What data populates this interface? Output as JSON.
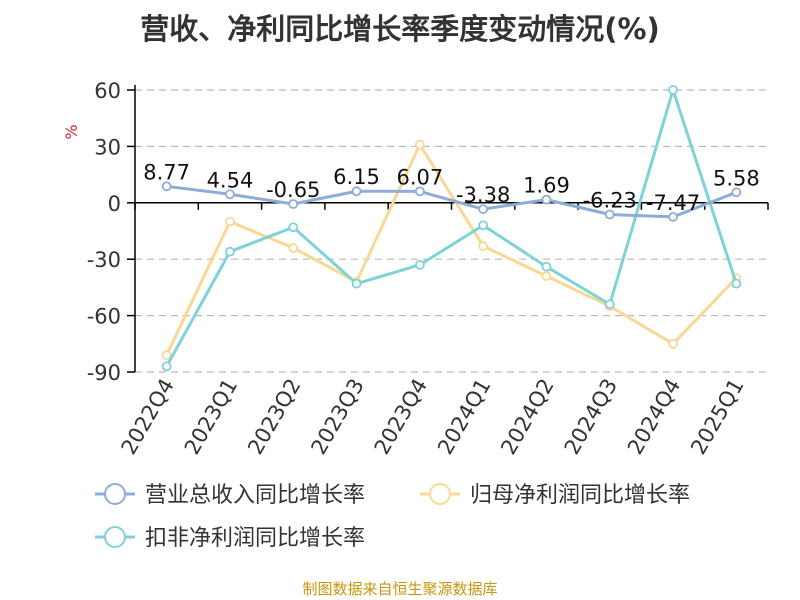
{
  "title": "营收、净利同比增长率季度变动情况(%)",
  "source": "制图数据来自恒生聚源数据库",
  "colors": {
    "revenue": "#8facd8",
    "net_profit": "#f8d894",
    "deducted_profit": "#7fd3d8",
    "unit": "#d62728",
    "axis": "#000000",
    "grid": "#bbbbbb",
    "text": "#333333"
  },
  "chart_data": {
    "type": "line",
    "ylabel": "%",
    "ylim": [
      -90,
      60
    ],
    "yticks": [
      60,
      30,
      0,
      -30,
      -60,
      -90
    ],
    "grid": true,
    "legend_position": "bottom",
    "categories": [
      "2022Q4",
      "2023Q1",
      "2023Q2",
      "2023Q3",
      "2023Q4",
      "2024Q1",
      "2024Q2",
      "2024Q3",
      "2024Q4",
      "2025Q1"
    ],
    "series": [
      {
        "name": "营业总收入同比增长率",
        "color_key": "revenue",
        "values": [
          8.77,
          4.54,
          -0.65,
          6.15,
          6.07,
          -3.38,
          1.69,
          -6.23,
          -7.47,
          5.58
        ],
        "labels": [
          "8.77",
          "4.54",
          "-0.65",
          "6.15",
          "6.07",
          "-3.38",
          "1.69",
          "-6.23",
          "-7.47",
          "5.58"
        ]
      },
      {
        "name": "归母净利润同比增长率",
        "color_key": "net_profit",
        "values": [
          -81,
          -10,
          -24,
          -42,
          31,
          -23,
          -39,
          -55,
          -75,
          -40
        ]
      },
      {
        "name": "扣非净利润同比增长率",
        "color_key": "deducted_profit",
        "values": [
          -87,
          -26,
          -13,
          -43,
          -33,
          -12,
          -34,
          -54,
          60,
          -43
        ]
      }
    ]
  }
}
